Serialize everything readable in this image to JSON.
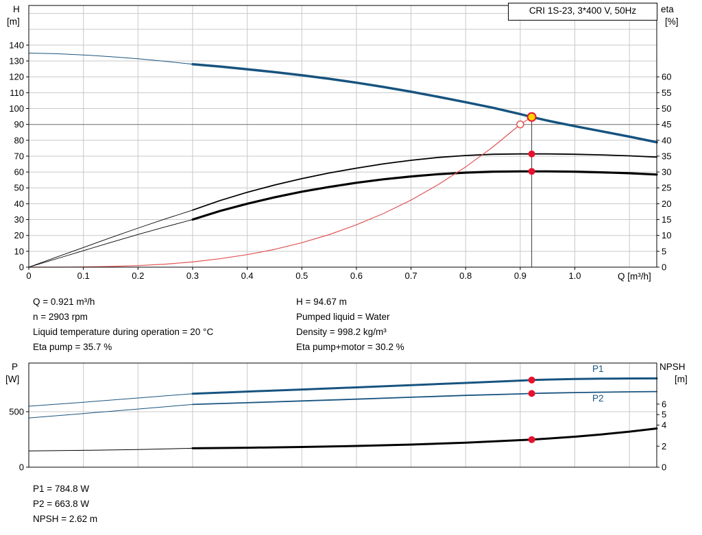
{
  "colors": {
    "curve_blue": "#17537f",
    "curve_black": "#000000",
    "curve_red": "#e25252",
    "marker_red": "#e8112d",
    "duty_yellow": "#ffd500",
    "grid": "#c8c8c8",
    "ref_gray": "#8c8c8c",
    "ref_dark": "#3a3a3a"
  },
  "info_panel": {
    "left": [
      "Q = 0.921 m³/h",
      "n = 2903 rpm",
      "Liquid temperature during operation = 20 °C",
      "Eta pump = 35.7 %"
    ],
    "right": [
      "H = 94.67 m",
      "Pumped liquid = Water",
      "Density = 998.2 kg/m³",
      "Eta pump+motor = 30.2 %"
    ]
  },
  "results_panel": [
    "P1 = 784.8 W",
    "P2 = 663.8 W",
    "NPSH = 2.62 m"
  ],
  "chart_data": [
    {
      "type": "line",
      "title": "CRI 1S-23, 3*400 V, 50Hz",
      "xlabel": "Q [m³/h]",
      "xlim": [
        0,
        1.15
      ],
      "x_ticks": [
        "0",
        "0.1",
        "0.2",
        "0.3",
        "0.4",
        "0.5",
        "0.6",
        "0.7",
        "0.8",
        "0.9",
        "1.0"
      ],
      "left_axis": {
        "label": "H",
        "unit": "[m]",
        "lim": [
          0,
          165
        ],
        "ticks": [
          0,
          10,
          20,
          30,
          40,
          50,
          60,
          70,
          80,
          90,
          100,
          110,
          120,
          130,
          140
        ]
      },
      "right_axis": {
        "label": "eta",
        "unit": "[%]",
        "lim": [
          0,
          82.5
        ],
        "ticks": [
          0,
          5,
          10,
          15,
          20,
          25,
          30,
          35,
          40,
          45,
          50,
          55,
          60
        ]
      },
      "series": [
        {
          "name": "pump-curve-extension",
          "axis": "left",
          "color": "#17537f",
          "width": 1,
          "points": [
            [
              0,
              135
            ],
            [
              0.05,
              134.6
            ],
            [
              0.1,
              133.8
            ],
            [
              0.15,
              132.7
            ],
            [
              0.2,
              131.4
            ],
            [
              0.25,
              129.8
            ],
            [
              0.3,
              128
            ]
          ]
        },
        {
          "name": "pump-curve",
          "axis": "left",
          "color": "#17537f",
          "width": 3.5,
          "points": [
            [
              0.3,
              128
            ],
            [
              0.35,
              126.5
            ],
            [
              0.4,
              124.8
            ],
            [
              0.45,
              123
            ],
            [
              0.5,
              121
            ],
            [
              0.55,
              118.8
            ],
            [
              0.6,
              116.3
            ],
            [
              0.65,
              113.6
            ],
            [
              0.7,
              110.6
            ],
            [
              0.75,
              107.4
            ],
            [
              0.8,
              104
            ],
            [
              0.85,
              100.5
            ],
            [
              0.9,
              96.5
            ],
            [
              0.921,
              94.67
            ],
            [
              0.95,
              92.4
            ],
            [
              1.0,
              88.9
            ],
            [
              1.05,
              85.6
            ],
            [
              1.1,
              82.3
            ],
            [
              1.15,
              78.8
            ]
          ]
        },
        {
          "name": "eta-pump-extension",
          "axis": "right",
          "color": "#000000",
          "width": 0.9,
          "points": [
            [
              0,
              0
            ],
            [
              0.05,
              3.1
            ],
            [
              0.1,
              6.2
            ],
            [
              0.15,
              9.3
            ],
            [
              0.2,
              12.3
            ],
            [
              0.25,
              15.2
            ],
            [
              0.3,
              18
            ]
          ]
        },
        {
          "name": "eta-pump-curve",
          "axis": "right",
          "color": "#000000",
          "width": 1.8,
          "points": [
            [
              0.3,
              18
            ],
            [
              0.35,
              21
            ],
            [
              0.4,
              23.6
            ],
            [
              0.45,
              25.9
            ],
            [
              0.5,
              27.9
            ],
            [
              0.55,
              29.7
            ],
            [
              0.6,
              31.2
            ],
            [
              0.65,
              32.6
            ],
            [
              0.7,
              33.7
            ],
            [
              0.75,
              34.6
            ],
            [
              0.8,
              35.2
            ],
            [
              0.85,
              35.6
            ],
            [
              0.9,
              35.7
            ],
            [
              0.95,
              35.7
            ],
            [
              1.0,
              35.6
            ],
            [
              1.05,
              35.4
            ],
            [
              1.1,
              35.1
            ],
            [
              1.15,
              34.7
            ]
          ]
        },
        {
          "name": "eta-pump-motor-extension",
          "axis": "right",
          "color": "#000000",
          "width": 0.9,
          "points": [
            [
              0,
              0
            ],
            [
              0.05,
              2.6
            ],
            [
              0.1,
              5.2
            ],
            [
              0.15,
              7.8
            ],
            [
              0.2,
              10.3
            ],
            [
              0.25,
              12.7
            ],
            [
              0.3,
              15
            ]
          ]
        },
        {
          "name": "eta-pump-motor-curve",
          "axis": "right",
          "color": "#000000",
          "width": 3.2,
          "points": [
            [
              0.3,
              15
            ],
            [
              0.35,
              17.7
            ],
            [
              0.4,
              20
            ],
            [
              0.45,
              22
            ],
            [
              0.5,
              23.8
            ],
            [
              0.55,
              25.3
            ],
            [
              0.6,
              26.6
            ],
            [
              0.65,
              27.7
            ],
            [
              0.7,
              28.6
            ],
            [
              0.75,
              29.3
            ],
            [
              0.8,
              29.8
            ],
            [
              0.85,
              30.1
            ],
            [
              0.9,
              30.2
            ],
            [
              0.95,
              30.2
            ],
            [
              1.0,
              30.1
            ],
            [
              1.05,
              29.9
            ],
            [
              1.1,
              29.6
            ],
            [
              1.15,
              29.2
            ]
          ]
        },
        {
          "name": "system-curve",
          "axis": "left",
          "color": "#e25252",
          "width": 1.2,
          "points": [
            [
              0,
              0
            ],
            [
              0.05,
              0.02
            ],
            [
              0.1,
              0.12
            ],
            [
              0.15,
              0.42
            ],
            [
              0.2,
              1.0
            ],
            [
              0.25,
              1.9
            ],
            [
              0.3,
              3.3
            ],
            [
              0.35,
              5.3
            ],
            [
              0.4,
              7.9
            ],
            [
              0.45,
              11.2
            ],
            [
              0.5,
              15.4
            ],
            [
              0.55,
              20.5
            ],
            [
              0.6,
              26.7
            ],
            [
              0.65,
              33.9
            ],
            [
              0.7,
              42.3
            ],
            [
              0.75,
              52.1
            ],
            [
              0.8,
              63.2
            ],
            [
              0.85,
              75.8
            ],
            [
              0.9,
              90
            ],
            [
              0.921,
              94.67
            ]
          ]
        }
      ],
      "reference_lines": [
        {
          "dir": "h",
          "axis": "left",
          "value": 90
        },
        {
          "dir": "v",
          "x": 0.921,
          "axis": "left",
          "top_value": 94.67
        }
      ],
      "markers": [
        {
          "name": "requested-duty-point",
          "style": "open-ring",
          "axis": "left",
          "x": 0.9,
          "value": 90
        },
        {
          "name": "duty-point",
          "style": "duty",
          "axis": "left",
          "x": 0.921,
          "value": 94.67
        },
        {
          "name": "eta-pump-duty-point",
          "style": "red-dot",
          "axis": "right",
          "x": 0.921,
          "value": 35.7
        },
        {
          "name": "eta-pump-motor-duty-point",
          "style": "red-dot",
          "axis": "right",
          "x": 0.921,
          "value": 30.2
        }
      ]
    },
    {
      "type": "line",
      "title": "",
      "xlabel": "",
      "xlim": [
        0,
        1.15
      ],
      "x_ticks": [],
      "left_axis": {
        "label": "P",
        "unit": "[W]",
        "lim": [
          0,
          938
        ],
        "ticks": [
          0,
          500
        ]
      },
      "right_axis": {
        "label": "NPSH",
        "unit": "[m]",
        "lim": [
          0,
          9.9
        ],
        "ticks": [
          0,
          2,
          4,
          5,
          6
        ]
      },
      "series": [
        {
          "name": "P1",
          "label": "P1",
          "axis": "left",
          "color": "#17537f",
          "width": 3,
          "points": [
            [
              0.3,
              662
            ],
            [
              0.4,
              681
            ],
            [
              0.5,
              700
            ],
            [
              0.6,
              719
            ],
            [
              0.7,
              739
            ],
            [
              0.8,
              759
            ],
            [
              0.9,
              780
            ],
            [
              0.921,
              784.8
            ],
            [
              0.95,
              789
            ],
            [
              1.0,
              794
            ],
            [
              1.05,
              797
            ],
            [
              1.1,
              799
            ],
            [
              1.15,
              800
            ]
          ]
        },
        {
          "name": "P1-extension",
          "axis": "left",
          "color": "#17537f",
          "width": 1,
          "points": [
            [
              0,
              549
            ],
            [
              0.1,
              585
            ],
            [
              0.2,
              623
            ],
            [
              0.3,
              662
            ]
          ]
        },
        {
          "name": "P2",
          "label": "P2",
          "axis": "left",
          "color": "#17537f",
          "width": 1.8,
          "points": [
            [
              0.3,
              565
            ],
            [
              0.4,
              581
            ],
            [
              0.5,
              597
            ],
            [
              0.6,
              613
            ],
            [
              0.7,
              630
            ],
            [
              0.8,
              647
            ],
            [
              0.9,
              660
            ],
            [
              0.921,
              663.8
            ],
            [
              0.95,
              668
            ],
            [
              1.0,
              672
            ],
            [
              1.05,
              676
            ],
            [
              1.1,
              679
            ],
            [
              1.15,
              681
            ]
          ]
        },
        {
          "name": "P2-extension",
          "axis": "left",
          "color": "#17537f",
          "width": 1,
          "points": [
            [
              0,
              444
            ],
            [
              0.1,
              483
            ],
            [
              0.2,
              524
            ],
            [
              0.3,
              565
            ]
          ]
        },
        {
          "name": "NPSH",
          "axis": "right",
          "color": "#000000",
          "width": 3,
          "points": [
            [
              0.3,
              1.8
            ],
            [
              0.4,
              1.85
            ],
            [
              0.5,
              1.92
            ],
            [
              0.6,
              2.02
            ],
            [
              0.7,
              2.15
            ],
            [
              0.8,
              2.33
            ],
            [
              0.9,
              2.57
            ],
            [
              0.921,
              2.62
            ],
            [
              0.95,
              2.72
            ],
            [
              1.0,
              2.9
            ],
            [
              1.05,
              3.12
            ],
            [
              1.1,
              3.38
            ],
            [
              1.15,
              3.68
            ]
          ]
        },
        {
          "name": "NPSH-extension",
          "axis": "right",
          "color": "#000000",
          "width": 1,
          "points": [
            [
              0,
              1.55
            ],
            [
              0.1,
              1.6
            ],
            [
              0.2,
              1.68
            ],
            [
              0.3,
              1.8
            ]
          ]
        }
      ],
      "reference_lines": [],
      "markers": [
        {
          "name": "p1-duty-point",
          "style": "red-dot",
          "axis": "left",
          "x": 0.921,
          "value": 784.8
        },
        {
          "name": "p2-duty-point",
          "style": "red-dot",
          "axis": "left",
          "x": 0.921,
          "value": 663.8
        },
        {
          "name": "npsh-duty-point",
          "style": "red-dot",
          "axis": "right",
          "x": 0.921,
          "value": 2.62
        }
      ]
    }
  ]
}
